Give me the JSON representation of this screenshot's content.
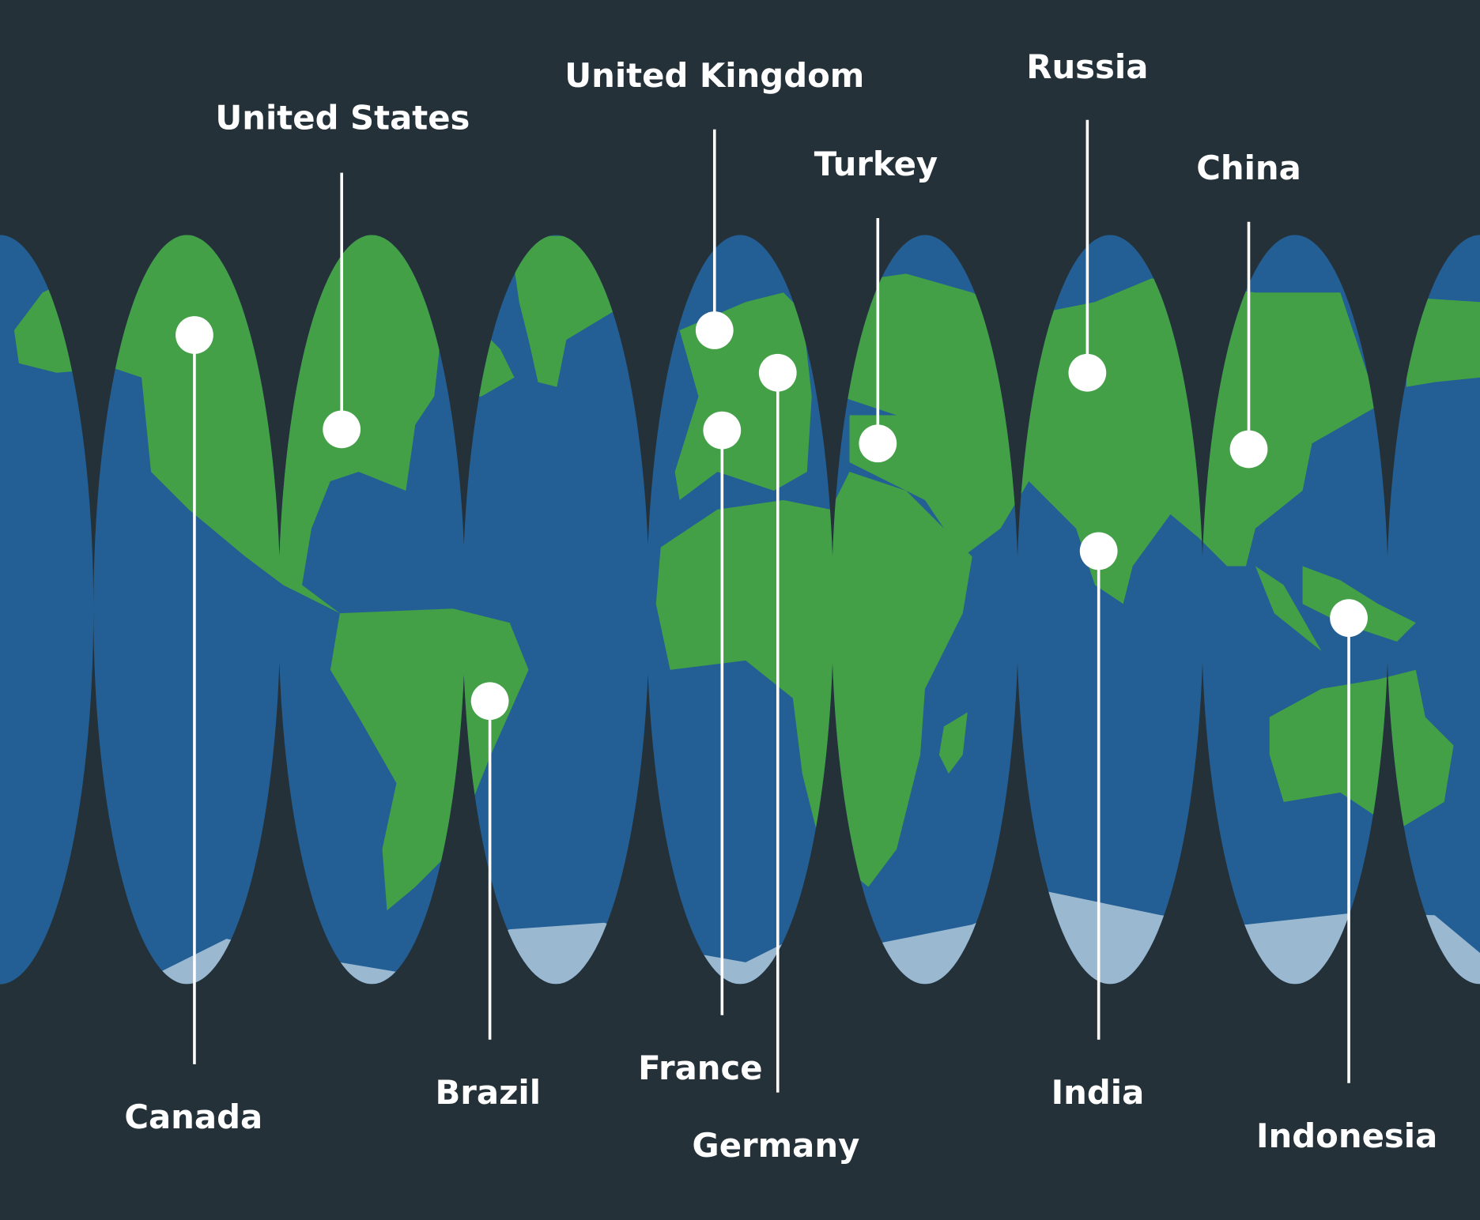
{
  "colors": {
    "background": "#253139",
    "ocean": "#235f94",
    "land": "#43a047",
    "ice": "#9ab8d0",
    "pin": "#ffffff"
  },
  "pins": [
    {
      "id": "canada",
      "label": "Canada"
    },
    {
      "id": "united-states",
      "label": "United States"
    },
    {
      "id": "brazil",
      "label": "Brazil"
    },
    {
      "id": "united-kingdom",
      "label": "United Kingdom"
    },
    {
      "id": "france",
      "label": "France"
    },
    {
      "id": "germany",
      "label": "Germany"
    },
    {
      "id": "turkey",
      "label": "Turkey"
    },
    {
      "id": "russia",
      "label": "Russia"
    },
    {
      "id": "india",
      "label": "India"
    },
    {
      "id": "china",
      "label": "China"
    },
    {
      "id": "indonesia",
      "label": "Indonesia"
    }
  ]
}
